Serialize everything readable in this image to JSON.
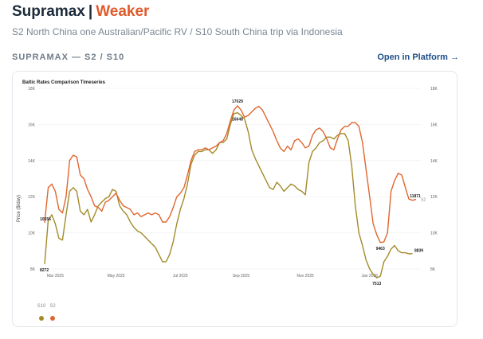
{
  "header": {
    "title_main": "Supramax",
    "separator": "|",
    "title_status": "Weaker"
  },
  "subtitle": "S2 North China one Australian/Pacific RV / S10 South China trip via Indonesia",
  "route_code": "SUPRAMAX — S2 / S10",
  "open_link": "Open in Platform →",
  "colors": {
    "S2": "#e0662f",
    "S10": "#a38b2a",
    "status": "#e05a2b",
    "link": "#1d4f8a"
  },
  "chart_data": {
    "type": "line",
    "title": "Baltic Rates Comparison Timeseries",
    "ylabel": "Price ($/day)",
    "ylim": [
      8000,
      18000
    ],
    "y_ticks": [
      "8K",
      "10K",
      "12K",
      "14K",
      "16K",
      "18K"
    ],
    "x_ticks": [
      "Mar 2025",
      "May 2025",
      "Jul 2025",
      "Sep 2025",
      "Nov 2025",
      "Jan 2026"
    ],
    "x_tick_index": [
      3,
      20,
      38,
      55,
      73,
      91
    ],
    "point_labels": [
      {
        "series": "S2",
        "index": 0,
        "text": "10556"
      },
      {
        "series": "S10",
        "index": 0,
        "text": "8272"
      },
      {
        "series": "S2",
        "index": 54,
        "text": "17029"
      },
      {
        "series": "S10",
        "index": 54,
        "text": "16648"
      },
      {
        "series": "S2",
        "index": 94,
        "text": "9463"
      },
      {
        "series": "S10",
        "index": 93,
        "text": "7513"
      },
      {
        "series": "S2",
        "index": 102,
        "text": "11871"
      },
      {
        "series": "S10",
        "index": 103,
        "text": "8839"
      }
    ],
    "legend": [
      "S10",
      "S2"
    ],
    "series": [
      {
        "name": "S2",
        "values": [
          10556,
          12500,
          12700,
          12300,
          11300,
          11100,
          12000,
          14000,
          14300,
          14200,
          13200,
          13000,
          12400,
          12000,
          11500,
          11400,
          11200,
          11700,
          11800,
          12000,
          12200,
          11800,
          11500,
          11400,
          11300,
          11000,
          11100,
          10900,
          11000,
          11100,
          11000,
          11100,
          11000,
          10600,
          10600,
          10900,
          11400,
          12000,
          12200,
          12500,
          13200,
          14000,
          14500,
          14600,
          14600,
          14700,
          14600,
          14700,
          14800,
          15000,
          15100,
          15500,
          16200,
          16800,
          17029,
          16800,
          16400,
          16500,
          16700,
          16900,
          17000,
          16800,
          16400,
          16000,
          15600,
          15100,
          14700,
          14500,
          14800,
          14600,
          15100,
          15200,
          15000,
          14700,
          14800,
          15400,
          15700,
          15800,
          15600,
          15200,
          14700,
          14600,
          15200,
          15700,
          15900,
          15900,
          16100,
          16100,
          15900,
          15000,
          13500,
          12000,
          10500,
          9900,
          9463,
          9500,
          10000,
          12300,
          12900,
          13300,
          13200,
          12500,
          11871,
          11800,
          11850
        ],
        "labels": [
          "",
          "S2"
        ]
      },
      {
        "name": "S10",
        "values": [
          8272,
          10700,
          11000,
          10500,
          9700,
          9600,
          11000,
          12300,
          12500,
          12300,
          11200,
          11000,
          11300,
          10600,
          11000,
          11500,
          11700,
          11900,
          12000,
          12400,
          12300,
          11500,
          11200,
          11000,
          10600,
          10300,
          10100,
          10000,
          9800,
          9600,
          9400,
          9200,
          8800,
          8400,
          8400,
          8800,
          9500,
          10500,
          11300,
          11900,
          12700,
          13800,
          14300,
          14500,
          14500,
          14600,
          14600,
          14400,
          14600,
          15000,
          15000,
          15200,
          16000,
          16600,
          16648,
          16500,
          16300,
          15600,
          14600,
          14100,
          13700,
          13300,
          12900,
          12500,
          12400,
          12800,
          12600,
          12300,
          12500,
          12700,
          12600,
          12400,
          12300,
          12100,
          13900,
          14500,
          14700,
          15000,
          15100,
          15300,
          15300,
          15200,
          15400,
          15500,
          15500,
          15100,
          13700,
          11500,
          10000,
          9300,
          8500,
          8000,
          7700,
          7513,
          7600,
          8400,
          8700,
          9100,
          9300,
          9000,
          8900,
          8900,
          8839,
          8850
        ],
        "labels": [
          "",
          "S10"
        ]
      }
    ]
  }
}
